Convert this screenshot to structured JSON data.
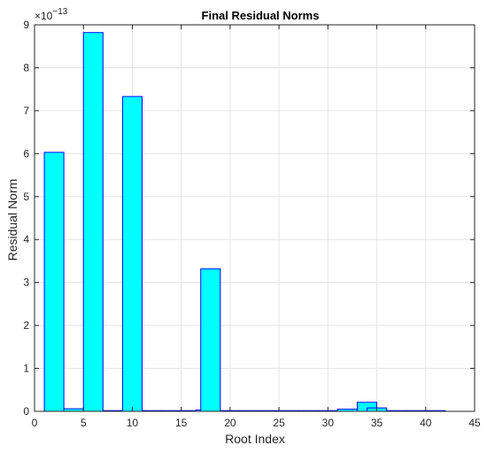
{
  "chart_data": {
    "type": "bar",
    "title": "Final Residual Norms",
    "xlabel": "Root Index",
    "ylabel": "Residual Norm",
    "y_exponent_base": "×10",
    "y_exponent_power": "−13",
    "xlim": [
      0,
      45
    ],
    "ylim": [
      0,
      9
    ],
    "xticks": [
      0,
      5,
      10,
      15,
      20,
      25,
      30,
      35,
      40,
      45
    ],
    "yticks": [
      0,
      1,
      2,
      3,
      4,
      5,
      6,
      7,
      8,
      9
    ],
    "grid": true,
    "bar_width": 2,
    "bar_fill": "#00ffff",
    "bar_edge": "#0000ff",
    "x": [
      2,
      4,
      6,
      8,
      10,
      12,
      14,
      16,
      17.5,
      18,
      20,
      22,
      24,
      26,
      28,
      30,
      32,
      34,
      35,
      37,
      39,
      41
    ],
    "values": [
      6.03,
      0.06,
      8.82,
      0.005,
      7.33,
      0.003,
      0.004,
      0.006,
      0.03,
      3.32,
      0.005,
      0.004,
      0.006,
      0.005,
      0.004,
      0.006,
      0.05,
      0.21,
      0.08,
      0.01,
      0.005,
      0.005
    ]
  }
}
